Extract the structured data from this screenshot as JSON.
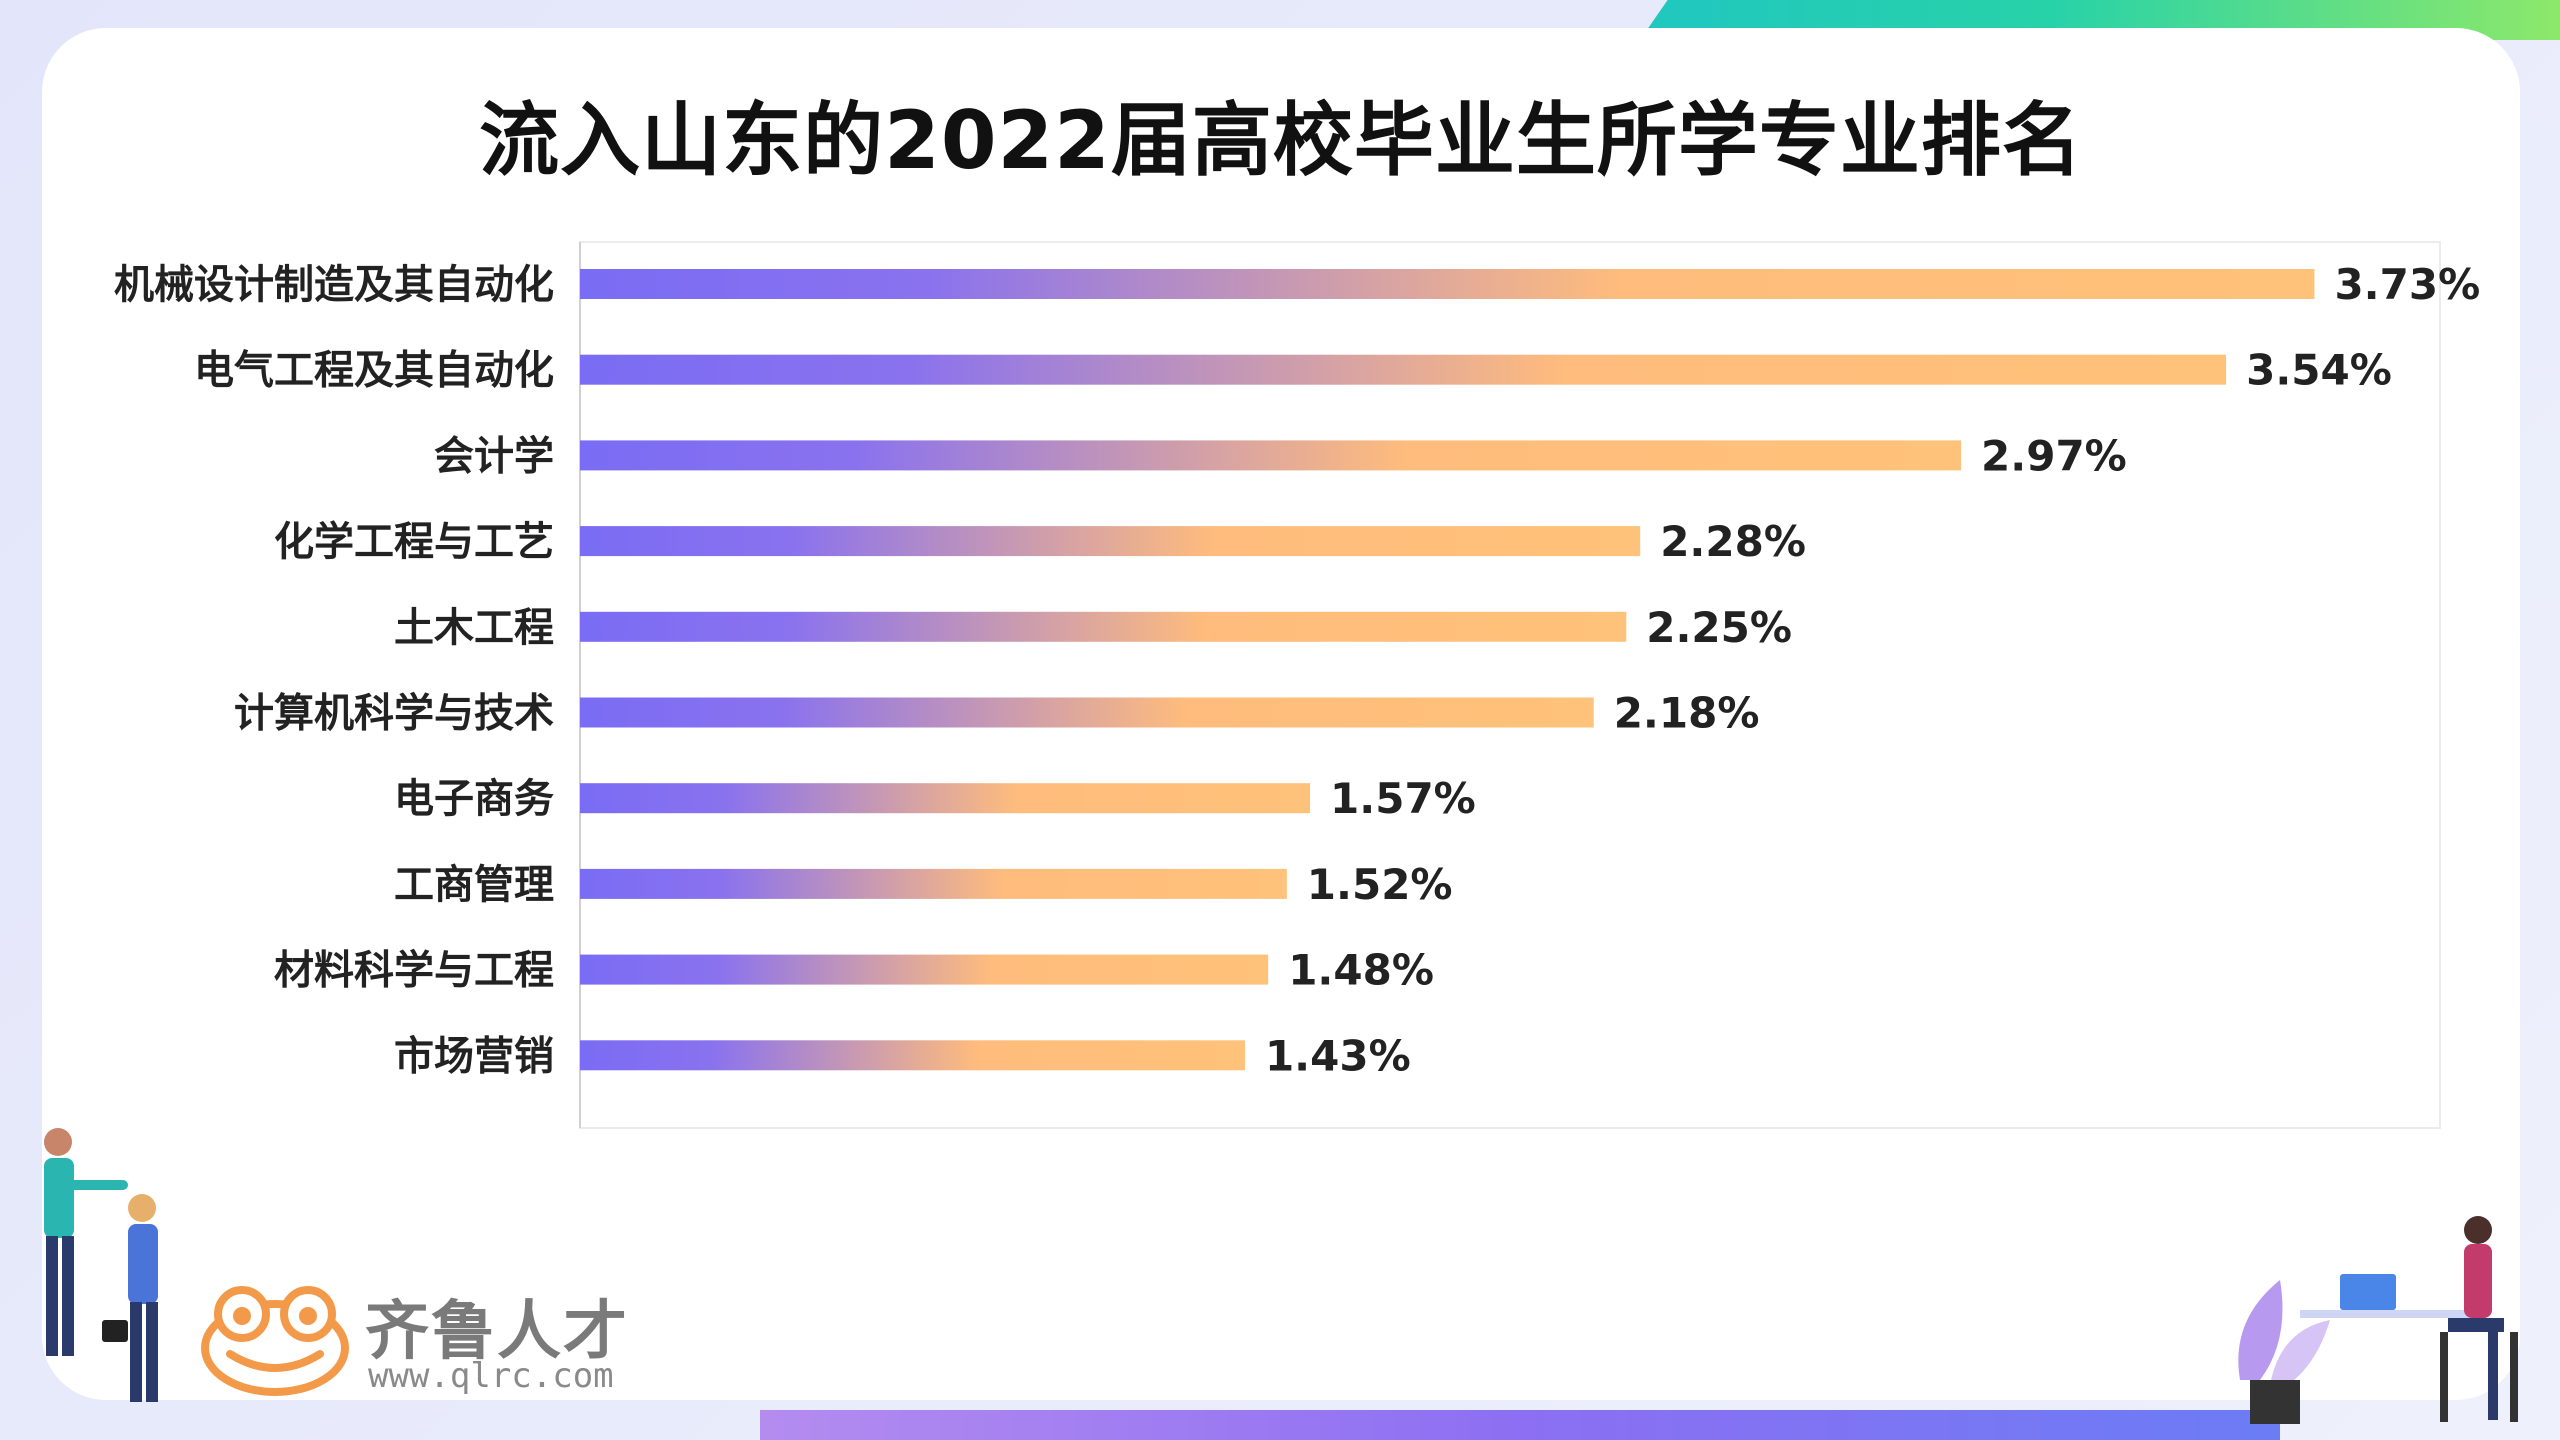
{
  "title": "流入山东的2022届高校毕业生所学专业排名",
  "chart_data": {
    "type": "bar",
    "orientation": "horizontal",
    "title": "流入山东的2022届高校毕业生所学专业排名",
    "categories": [
      "机械设计制造及其自动化",
      "电气工程及其自动化",
      "会计学",
      "化学工程与工艺",
      "土木工程",
      "计算机科学与技术",
      "电子商务",
      "工商管理",
      "材料科学与工程",
      "市场营销"
    ],
    "values": [
      3.73,
      3.54,
      2.97,
      2.28,
      2.25,
      2.18,
      1.57,
      1.52,
      1.48,
      1.43
    ],
    "value_labels": [
      "3.73%",
      "3.54%",
      "2.97%",
      "2.28%",
      "2.25%",
      "2.18%",
      "1.57%",
      "1.52%",
      "1.48%",
      "1.43%"
    ],
    "unit": "%",
    "xlim": [
      0,
      4.0
    ],
    "grid": false,
    "bar_gradient": [
      "#7a6cf4",
      "#ffc07a"
    ]
  },
  "logo": {
    "name": "齐鲁人才",
    "url": "www.qlrc.com",
    "color": "#f39a4a"
  }
}
